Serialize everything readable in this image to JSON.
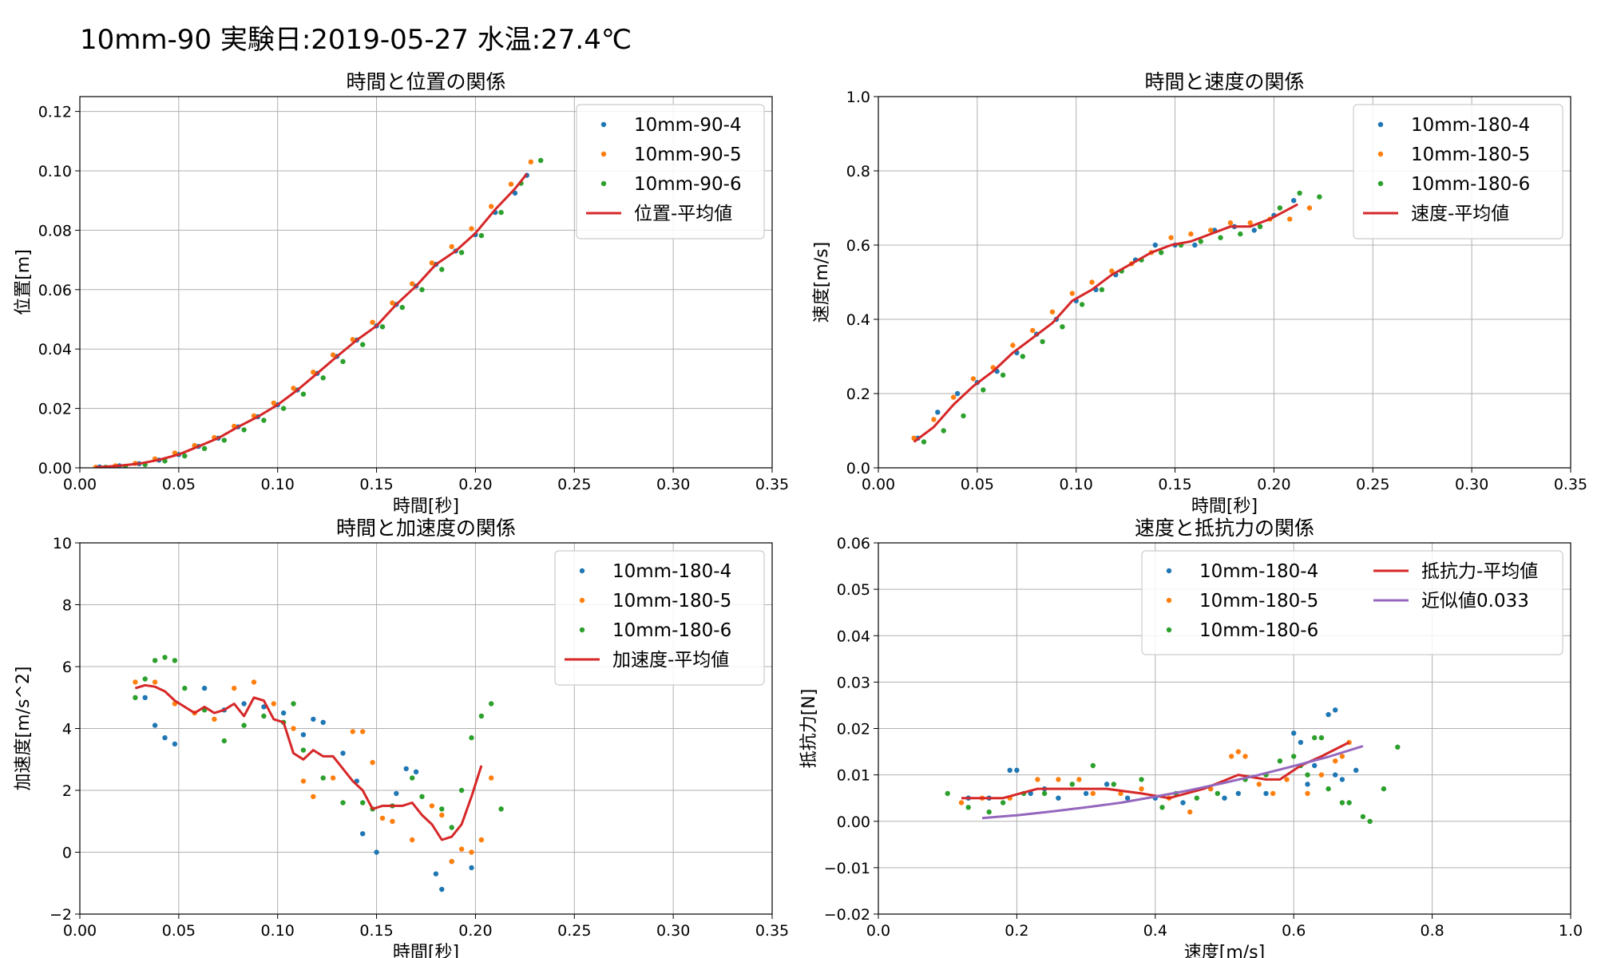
{
  "figure": {
    "title": "10mm-90 実験日:2019-05-27 水温:27.4℃"
  },
  "colors": {
    "blue": "#1f77b4",
    "orange": "#ff7f0e",
    "green": "#2ca02c",
    "red": "#d62728",
    "purple": "#9467bd"
  },
  "chart_data": [
    {
      "type": "scatter",
      "title": "時間と位置の関係",
      "xlabel": "時間[秒]",
      "ylabel": "位置[m]",
      "xlim": [
        0.0,
        0.35
      ],
      "ylim": [
        0.0,
        0.125
      ],
      "xticks": [
        "0.00",
        "0.05",
        "0.10",
        "0.15",
        "0.20",
        "0.25",
        "0.30",
        "0.35"
      ],
      "yticks": [
        "0.00",
        "0.02",
        "0.04",
        "0.06",
        "0.08",
        "0.10",
        "0.12"
      ],
      "grid": true,
      "legend": {
        "placement": "top-right",
        "columns": 1
      },
      "series": [
        {
          "name": "10mm-90-4",
          "kind": "points",
          "color": "#1f77b4",
          "x": [
            0.01,
            0.02,
            0.03,
            0.04,
            0.05,
            0.06,
            0.07,
            0.08,
            0.09,
            0.1,
            0.11,
            0.12,
            0.13,
            0.14,
            0.15,
            0.16,
            0.17,
            0.18,
            0.19,
            0.2,
            0.21,
            0.22,
            0.226
          ],
          "y": [
            0.0003,
            0.0007,
            0.0014,
            0.0026,
            0.0045,
            0.0072,
            0.01,
            0.0138,
            0.0172,
            0.0212,
            0.0262,
            0.0318,
            0.0375,
            0.043,
            0.0478,
            0.055,
            0.0612,
            0.0685,
            0.073,
            0.0785,
            0.086,
            0.0925,
            0.0985
          ]
        },
        {
          "name": "10mm-90-5",
          "kind": "points",
          "color": "#ff7f0e",
          "x": [
            0.008,
            0.018,
            0.028,
            0.038,
            0.048,
            0.058,
            0.068,
            0.078,
            0.088,
            0.098,
            0.108,
            0.118,
            0.128,
            0.138,
            0.148,
            0.158,
            0.168,
            0.178,
            0.188,
            0.198,
            0.208,
            0.218,
            0.228
          ],
          "y": [
            0.0002,
            0.0007,
            0.0015,
            0.003,
            0.005,
            0.0075,
            0.0102,
            0.014,
            0.0175,
            0.0218,
            0.0268,
            0.0322,
            0.038,
            0.0432,
            0.049,
            0.0555,
            0.062,
            0.069,
            0.0745,
            0.0805,
            0.088,
            0.0955,
            0.103
          ]
        },
        {
          "name": "10mm-90-6",
          "kind": "points",
          "color": "#2ca02c",
          "x": [
            0.013,
            0.023,
            0.033,
            0.043,
            0.053,
            0.063,
            0.073,
            0.083,
            0.093,
            0.103,
            0.113,
            0.123,
            0.133,
            0.143,
            0.153,
            0.163,
            0.173,
            0.183,
            0.193,
            0.203,
            0.213,
            0.223,
            0.233
          ],
          "y": [
            0.0002,
            0.0005,
            0.0011,
            0.0023,
            0.004,
            0.0065,
            0.0093,
            0.0128,
            0.016,
            0.02,
            0.0248,
            0.0303,
            0.0358,
            0.0415,
            0.0475,
            0.054,
            0.06,
            0.0668,
            0.0725,
            0.0782,
            0.086,
            0.0958,
            0.1035
          ]
        },
        {
          "name": "位置-平均値",
          "kind": "line",
          "color": "#d62728",
          "x": [
            0.008,
            0.02,
            0.03,
            0.04,
            0.05,
            0.06,
            0.07,
            0.08,
            0.09,
            0.1,
            0.11,
            0.12,
            0.13,
            0.14,
            0.15,
            0.16,
            0.17,
            0.18,
            0.19,
            0.2,
            0.21,
            0.22,
            0.226
          ],
          "y": [
            0.0002,
            0.0007,
            0.0014,
            0.0027,
            0.0045,
            0.0072,
            0.01,
            0.0138,
            0.0172,
            0.0212,
            0.0262,
            0.0318,
            0.0375,
            0.043,
            0.0478,
            0.055,
            0.0612,
            0.0685,
            0.073,
            0.079,
            0.087,
            0.094,
            0.099
          ]
        }
      ]
    },
    {
      "type": "scatter",
      "title": "時間と速度の関係",
      "xlabel": "時間[秒]",
      "ylabel": "速度[m/s]",
      "xlim": [
        0.0,
        0.35
      ],
      "ylim": [
        0.0,
        1.0
      ],
      "xticks": [
        "0.00",
        "0.05",
        "0.10",
        "0.15",
        "0.20",
        "0.25",
        "0.30",
        "0.35"
      ],
      "yticks": [
        "0.0",
        "0.2",
        "0.4",
        "0.6",
        "0.8",
        "1.0"
      ],
      "grid": true,
      "legend": {
        "placement": "top-right",
        "columns": 1
      },
      "series": [
        {
          "name": "10mm-180-4",
          "kind": "points",
          "color": "#1f77b4",
          "x": [
            0.02,
            0.03,
            0.04,
            0.05,
            0.06,
            0.07,
            0.08,
            0.09,
            0.1,
            0.11,
            0.12,
            0.13,
            0.14,
            0.15,
            0.16,
            0.17,
            0.18,
            0.19,
            0.2,
            0.21
          ],
          "y": [
            0.08,
            0.15,
            0.2,
            0.23,
            0.26,
            0.31,
            0.36,
            0.4,
            0.45,
            0.48,
            0.52,
            0.56,
            0.6,
            0.6,
            0.6,
            0.64,
            0.65,
            0.64,
            0.68,
            0.72
          ]
        },
        {
          "name": "10mm-180-5",
          "kind": "points",
          "color": "#ff7f0e",
          "x": [
            0.018,
            0.028,
            0.038,
            0.048,
            0.058,
            0.068,
            0.078,
            0.088,
            0.098,
            0.108,
            0.118,
            0.128,
            0.138,
            0.148,
            0.158,
            0.168,
            0.178,
            0.188,
            0.198,
            0.208,
            0.218
          ],
          "y": [
            0.08,
            0.13,
            0.19,
            0.24,
            0.27,
            0.33,
            0.37,
            0.42,
            0.47,
            0.5,
            0.53,
            0.55,
            0.58,
            0.62,
            0.63,
            0.64,
            0.66,
            0.66,
            0.67,
            0.67,
            0.7
          ]
        },
        {
          "name": "10mm-180-6",
          "kind": "points",
          "color": "#2ca02c",
          "x": [
            0.023,
            0.033,
            0.043,
            0.053,
            0.063,
            0.073,
            0.083,
            0.093,
            0.103,
            0.113,
            0.123,
            0.133,
            0.143,
            0.153,
            0.163,
            0.173,
            0.183,
            0.193,
            0.203,
            0.213,
            0.223
          ],
          "y": [
            0.07,
            0.1,
            0.14,
            0.21,
            0.25,
            0.3,
            0.34,
            0.38,
            0.44,
            0.48,
            0.53,
            0.56,
            0.58,
            0.6,
            0.61,
            0.62,
            0.63,
            0.65,
            0.7,
            0.74,
            0.73
          ]
        },
        {
          "name": "速度-平均値",
          "kind": "line",
          "color": "#d62728",
          "x": [
            0.018,
            0.028,
            0.038,
            0.048,
            0.058,
            0.068,
            0.078,
            0.088,
            0.098,
            0.108,
            0.118,
            0.128,
            0.138,
            0.148,
            0.158,
            0.168,
            0.178,
            0.188,
            0.198,
            0.212
          ],
          "y": [
            0.07,
            0.11,
            0.17,
            0.22,
            0.26,
            0.31,
            0.35,
            0.39,
            0.45,
            0.48,
            0.52,
            0.55,
            0.58,
            0.6,
            0.61,
            0.63,
            0.65,
            0.65,
            0.67,
            0.71
          ]
        }
      ]
    },
    {
      "type": "scatter",
      "title": "時間と加速度の関係",
      "xlabel": "時間[秒]",
      "ylabel": "加速度[m/s^2]",
      "xlim": [
        0.0,
        0.35
      ],
      "ylim": [
        -2,
        10
      ],
      "xticks": [
        "0.00",
        "0.05",
        "0.10",
        "0.15",
        "0.20",
        "0.25",
        "0.30",
        "0.35"
      ],
      "yticks": [
        "−2",
        "0",
        "2",
        "4",
        "6",
        "8",
        "10"
      ],
      "grid": true,
      "legend": {
        "placement": "top-right",
        "columns": 1
      },
      "series": [
        {
          "name": "10mm-180-4",
          "kind": "points",
          "color": "#1f77b4",
          "x": [
            0.033,
            0.038,
            0.043,
            0.048,
            0.063,
            0.073,
            0.083,
            0.093,
            0.103,
            0.113,
            0.118,
            0.123,
            0.133,
            0.14,
            0.143,
            0.15,
            0.16,
            0.165,
            0.17,
            0.18,
            0.183,
            0.188,
            0.198
          ],
          "y": [
            5.0,
            4.1,
            3.7,
            3.5,
            5.3,
            4.6,
            4.8,
            4.7,
            4.5,
            3.8,
            4.3,
            4.2,
            3.2,
            2.3,
            0.6,
            0.0,
            1.9,
            2.7,
            2.6,
            -0.7,
            -1.2,
            -0.3,
            -0.5
          ]
        },
        {
          "name": "10mm-180-5",
          "kind": "points",
          "color": "#ff7f0e",
          "x": [
            0.028,
            0.038,
            0.048,
            0.058,
            0.068,
            0.078,
            0.088,
            0.098,
            0.108,
            0.113,
            0.118,
            0.128,
            0.138,
            0.143,
            0.148,
            0.153,
            0.158,
            0.168,
            0.178,
            0.183,
            0.188,
            0.193,
            0.198,
            0.203,
            0.208
          ],
          "y": [
            5.5,
            5.5,
            4.8,
            4.5,
            4.3,
            5.3,
            5.5,
            4.8,
            4.0,
            2.3,
            1.8,
            2.4,
            3.9,
            3.9,
            2.9,
            1.1,
            1.0,
            0.4,
            1.5,
            1.2,
            -0.3,
            0.1,
            0.0,
            0.4,
            2.4
          ]
        },
        {
          "name": "10mm-180-6",
          "kind": "points",
          "color": "#2ca02c",
          "x": [
            0.028,
            0.033,
            0.038,
            0.043,
            0.048,
            0.053,
            0.063,
            0.073,
            0.083,
            0.093,
            0.103,
            0.108,
            0.113,
            0.123,
            0.133,
            0.143,
            0.148,
            0.158,
            0.168,
            0.173,
            0.183,
            0.188,
            0.193,
            0.198,
            0.203,
            0.208,
            0.213
          ],
          "y": [
            5.0,
            5.6,
            6.2,
            6.3,
            6.2,
            5.3,
            4.6,
            3.6,
            4.1,
            4.4,
            4.2,
            4.8,
            3.3,
            2.4,
            1.6,
            1.6,
            1.4,
            1.5,
            2.4,
            1.8,
            1.4,
            0.8,
            2.0,
            3.7,
            4.4,
            4.8,
            1.4
          ]
        },
        {
          "name": "加速度-平均値",
          "kind": "line",
          "color": "#d62728",
          "x": [
            0.028,
            0.033,
            0.038,
            0.043,
            0.048,
            0.053,
            0.058,
            0.063,
            0.068,
            0.073,
            0.078,
            0.083,
            0.088,
            0.093,
            0.098,
            0.103,
            0.108,
            0.113,
            0.118,
            0.123,
            0.128,
            0.133,
            0.138,
            0.143,
            0.148,
            0.153,
            0.158,
            0.163,
            0.168,
            0.173,
            0.178,
            0.183,
            0.188,
            0.193,
            0.198,
            0.203
          ],
          "y": [
            5.3,
            5.4,
            5.35,
            5.2,
            4.9,
            4.7,
            4.5,
            4.7,
            4.5,
            4.6,
            4.8,
            4.4,
            5.0,
            4.9,
            4.3,
            4.2,
            3.2,
            3.0,
            3.3,
            3.1,
            3.1,
            2.7,
            2.3,
            2.0,
            1.4,
            1.5,
            1.5,
            1.5,
            1.6,
            1.2,
            0.9,
            0.4,
            0.5,
            0.9,
            1.8,
            2.8
          ]
        }
      ]
    },
    {
      "type": "scatter",
      "title": "速度と抵抗力の関係",
      "xlabel": "速度[m/s]",
      "ylabel": "抵抗力[N]",
      "xlim": [
        0.0,
        1.0
      ],
      "ylim": [
        -0.02,
        0.06
      ],
      "xticks": [
        "0.0",
        "0.2",
        "0.4",
        "0.6",
        "0.8",
        "1.0"
      ],
      "yticks": [
        "−0.02",
        "−0.01",
        "0.00",
        "0.01",
        "0.02",
        "0.03",
        "0.04",
        "0.05",
        "0.06"
      ],
      "grid": true,
      "legend": {
        "placement": "top-right",
        "columns": 2
      },
      "series": [
        {
          "name": "10mm-180-4",
          "kind": "points",
          "color": "#1f77b4",
          "x": [
            0.13,
            0.16,
            0.19,
            0.2,
            0.22,
            0.24,
            0.26,
            0.3,
            0.33,
            0.36,
            0.4,
            0.44,
            0.48,
            0.5,
            0.52,
            0.56,
            0.6,
            0.61,
            0.62,
            0.63,
            0.65,
            0.66,
            0.66,
            0.67,
            0.69
          ],
          "y": [
            0.005,
            0.005,
            0.011,
            0.011,
            0.006,
            0.007,
            0.005,
            0.006,
            0.008,
            0.005,
            0.005,
            0.004,
            0.007,
            0.005,
            0.006,
            0.006,
            0.019,
            0.017,
            0.008,
            0.012,
            0.023,
            0.024,
            0.01,
            0.009,
            0.011
          ]
        },
        {
          "name": "10mm-180-5",
          "kind": "points",
          "color": "#ff7f0e",
          "x": [
            0.12,
            0.15,
            0.19,
            0.23,
            0.26,
            0.29,
            0.31,
            0.35,
            0.38,
            0.42,
            0.45,
            0.48,
            0.51,
            0.52,
            0.53,
            0.55,
            0.57,
            0.59,
            0.62,
            0.64,
            0.66,
            0.67,
            0.68
          ],
          "y": [
            0.004,
            0.005,
            0.005,
            0.009,
            0.009,
            0.009,
            0.006,
            0.006,
            0.007,
            0.005,
            0.002,
            0.007,
            0.014,
            0.015,
            0.014,
            0.008,
            0.006,
            0.009,
            0.006,
            0.01,
            0.013,
            0.014,
            0.017
          ]
        },
        {
          "name": "10mm-180-6",
          "kind": "points",
          "color": "#2ca02c",
          "x": [
            0.1,
            0.13,
            0.16,
            0.18,
            0.21,
            0.24,
            0.28,
            0.31,
            0.34,
            0.38,
            0.41,
            0.43,
            0.46,
            0.49,
            0.53,
            0.56,
            0.58,
            0.6,
            0.61,
            0.62,
            0.63,
            0.64,
            0.65,
            0.67,
            0.68,
            0.7,
            0.71,
            0.73,
            0.75
          ],
          "y": [
            0.006,
            0.003,
            0.002,
            0.004,
            0.006,
            0.006,
            0.008,
            0.012,
            0.008,
            0.009,
            0.003,
            0.006,
            0.005,
            0.006,
            0.009,
            0.01,
            0.013,
            0.014,
            0.012,
            0.01,
            0.018,
            0.018,
            0.007,
            0.004,
            0.004,
            0.001,
            0.0,
            0.007,
            0.016
          ]
        },
        {
          "name": "抵抗力-平均値",
          "kind": "line",
          "color": "#d62728",
          "x": [
            0.12,
            0.18,
            0.23,
            0.28,
            0.33,
            0.38,
            0.42,
            0.47,
            0.52,
            0.56,
            0.58,
            0.61,
            0.64,
            0.68
          ],
          "y": [
            0.005,
            0.005,
            0.007,
            0.007,
            0.007,
            0.006,
            0.005,
            0.007,
            0.01,
            0.009,
            0.009,
            0.012,
            0.014,
            0.017
          ]
        },
        {
          "name": "近似値0.033",
          "kind": "line",
          "color": "#9467bd",
          "x": [
            0.15,
            0.2,
            0.25,
            0.3,
            0.35,
            0.4,
            0.45,
            0.5,
            0.55,
            0.6,
            0.65,
            0.7
          ],
          "y": [
            0.0007,
            0.0013,
            0.0021,
            0.003,
            0.004,
            0.0053,
            0.0067,
            0.0083,
            0.01,
            0.0119,
            0.0139,
            0.0162
          ]
        }
      ]
    }
  ]
}
